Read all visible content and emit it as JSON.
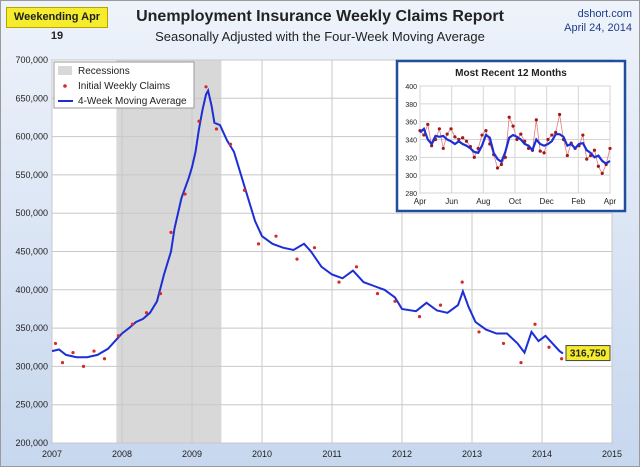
{
  "header": {
    "week_badge": "Weekending Apr 19",
    "title": "Unemployment Insurance Weekly Claims Report",
    "subtitle": "Seasonally Adjusted with the Four-Week Moving Average",
    "source": "dshort.com",
    "date": "April 24, 2014"
  },
  "colors": {
    "moving_average": "#1c2fd6",
    "claims_points": "#d42a2a",
    "recession": "#d8d8d8",
    "latest_label_bg": "#f4ec2c",
    "inset_border": "#1f4f9c"
  },
  "chart_data": [
    {
      "type": "line",
      "x_axis": {
        "min": 2007,
        "max": 2015,
        "ticks": [
          "2007",
          "2008",
          "2009",
          "2010",
          "2011",
          "2012",
          "2013",
          "2014",
          "2015"
        ]
      },
      "y_axis": {
        "min": 200000,
        "max": 700000,
        "ticks": [
          "200,000",
          "250,000",
          "300,000",
          "350,000",
          "400,000",
          "450,000",
          "500,000",
          "550,000",
          "600,000",
          "650,000",
          "700,000"
        ]
      },
      "grid": true,
      "legend": {
        "placement": "top-left",
        "entries": [
          "Recessions",
          "Initial Weekly Claims",
          "4-Week Moving Average"
        ]
      },
      "recession": {
        "start": 2007.92,
        "end": 2009.42
      },
      "series": [
        {
          "name": "4-Week Moving Average",
          "points": [
            [
              2007.0,
              320000
            ],
            [
              2007.1,
              322000
            ],
            [
              2007.2,
              315000
            ],
            [
              2007.35,
              312000
            ],
            [
              2007.5,
              312000
            ],
            [
              2007.65,
              315000
            ],
            [
              2007.8,
              323000
            ],
            [
              2007.92,
              335000
            ],
            [
              2008.0,
              343000
            ],
            [
              2008.1,
              350000
            ],
            [
              2008.2,
              358000
            ],
            [
              2008.3,
              362000
            ],
            [
              2008.4,
              370000
            ],
            [
              2008.5,
              385000
            ],
            [
              2008.6,
              420000
            ],
            [
              2008.7,
              450000
            ],
            [
              2008.75,
              480000
            ],
            [
              2008.85,
              520000
            ],
            [
              2008.95,
              545000
            ],
            [
              2009.0,
              560000
            ],
            [
              2009.05,
              580000
            ],
            [
              2009.1,
              610000
            ],
            [
              2009.15,
              635000
            ],
            [
              2009.2,
              655000
            ],
            [
              2009.23,
              660000
            ],
            [
              2009.28,
              640000
            ],
            [
              2009.32,
              618000
            ],
            [
              2009.4,
              615000
            ],
            [
              2009.5,
              595000
            ],
            [
              2009.6,
              580000
            ],
            [
              2009.7,
              550000
            ],
            [
              2009.8,
              520000
            ],
            [
              2009.9,
              490000
            ],
            [
              2010.0,
              470000
            ],
            [
              2010.15,
              460000
            ],
            [
              2010.3,
              455000
            ],
            [
              2010.45,
              452000
            ],
            [
              2010.6,
              460000
            ],
            [
              2010.7,
              450000
            ],
            [
              2010.85,
              430000
            ],
            [
              2011.0,
              420000
            ],
            [
              2011.15,
              415000
            ],
            [
              2011.3,
              425000
            ],
            [
              2011.45,
              410000
            ],
            [
              2011.6,
              405000
            ],
            [
              2011.75,
              400000
            ],
            [
              2011.9,
              390000
            ],
            [
              2012.0,
              375000
            ],
            [
              2012.2,
              372000
            ],
            [
              2012.35,
              383000
            ],
            [
              2012.5,
              373000
            ],
            [
              2012.65,
              370000
            ],
            [
              2012.8,
              380000
            ],
            [
              2012.87,
              398000
            ],
            [
              2012.95,
              378000
            ],
            [
              2013.05,
              358000
            ],
            [
              2013.2,
              348000
            ],
            [
              2013.35,
              343000
            ],
            [
              2013.5,
              343000
            ],
            [
              2013.65,
              330000
            ],
            [
              2013.75,
              318000
            ],
            [
              2013.85,
              345000
            ],
            [
              2013.95,
              333000
            ],
            [
              2014.05,
              340000
            ],
            [
              2014.15,
              330000
            ],
            [
              2014.25,
              320000
            ],
            [
              2014.3,
              316750
            ]
          ]
        },
        {
          "name": "Initial Weekly Claims",
          "points": [
            [
              2007.05,
              330000
            ],
            [
              2007.15,
              305000
            ],
            [
              2007.3,
              318000
            ],
            [
              2007.45,
              300000
            ],
            [
              2007.6,
              320000
            ],
            [
              2007.75,
              310000
            ],
            [
              2007.95,
              340000
            ],
            [
              2008.15,
              355000
            ],
            [
              2008.35,
              370000
            ],
            [
              2008.55,
              395000
            ],
            [
              2008.7,
              475000
            ],
            [
              2008.9,
              525000
            ],
            [
              2009.1,
              620000
            ],
            [
              2009.2,
              665000
            ],
            [
              2009.35,
              610000
            ],
            [
              2009.55,
              590000
            ],
            [
              2009.75,
              530000
            ],
            [
              2009.95,
              460000
            ],
            [
              2010.2,
              470000
            ],
            [
              2010.5,
              440000
            ],
            [
              2010.75,
              455000
            ],
            [
              2011.1,
              410000
            ],
            [
              2011.35,
              430000
            ],
            [
              2011.65,
              395000
            ],
            [
              2011.9,
              385000
            ],
            [
              2012.25,
              365000
            ],
            [
              2012.55,
              380000
            ],
            [
              2012.86,
              410000
            ],
            [
              2013.1,
              345000
            ],
            [
              2013.45,
              330000
            ],
            [
              2013.7,
              305000
            ],
            [
              2013.9,
              355000
            ],
            [
              2014.1,
              325000
            ],
            [
              2014.28,
              310000
            ]
          ]
        }
      ],
      "annotation": {
        "x": 2014.3,
        "y": 316750,
        "label": "316,750"
      }
    },
    {
      "type": "line",
      "title": "Most Recent 12 Months",
      "x_axis": {
        "ticks": [
          "Apr",
          "Jun",
          "Aug",
          "Oct",
          "Dec",
          "Feb",
          "Apr"
        ]
      },
      "y_axis": {
        "min": 280,
        "max": 400,
        "ticks": [
          "280",
          "300",
          "320",
          "340",
          "360",
          "380",
          "400"
        ]
      },
      "grid": true,
      "series": [
        {
          "name": "4-Week Moving Average",
          "values": [
            348,
            352,
            340,
            335,
            344,
            343,
            344,
            340,
            338,
            335,
            338,
            335,
            333,
            330,
            326,
            325,
            333,
            345,
            342,
            325,
            318,
            315,
            326,
            342,
            345,
            343,
            340,
            335,
            333,
            328,
            340,
            335,
            333,
            335,
            338,
            346,
            346,
            343,
            333,
            335,
            330,
            335,
            336,
            328,
            325,
            320,
            322,
            316,
            313,
            316
          ]
        },
        {
          "name": "Initial Weekly Claims",
          "values": [
            350,
            345,
            357,
            333,
            340,
            352,
            330,
            346,
            352,
            343,
            340,
            342,
            338,
            332,
            320,
            330,
            345,
            350,
            335,
            323,
            308,
            312,
            320,
            365,
            355,
            340,
            346,
            338,
            330,
            328,
            362,
            327,
            325,
            340,
            345,
            348,
            368,
            340,
            322,
            336,
            330,
            333,
            345,
            318,
            322,
            328,
            310,
            302,
            312,
            330
          ]
        }
      ]
    }
  ]
}
